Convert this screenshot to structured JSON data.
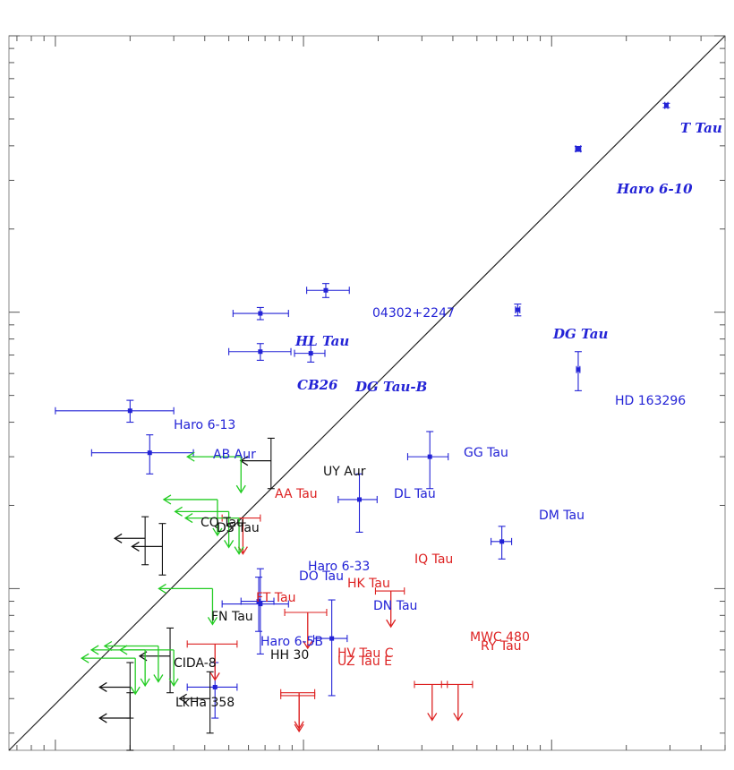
{
  "colors": {
    "blue": "#2323d6",
    "red": "#dd2222",
    "green": "#22cc22",
    "black": "#111111"
  },
  "chart_data": {
    "type": "scatter",
    "title": "",
    "xlabel": "",
    "ylabel": "",
    "xscale": "log",
    "yscale": "log",
    "xlim": [
      0.065,
      50
    ],
    "ylim": [
      0.026,
      10
    ],
    "grid": false,
    "tick_labels_shown": false,
    "reference_line": "y = x",
    "points": [
      {
        "name": "T Tau",
        "color": "blue",
        "style": "bold-italic",
        "x": 29,
        "y": 5.6,
        "xerr": [
          0.4,
          0.4
        ],
        "yerr": [
          0.1,
          0.1
        ]
      },
      {
        "name": "Haro 6-10",
        "color": "blue",
        "style": "bold-italic",
        "x": 12.8,
        "y": 3.9,
        "xerr": [
          0.3,
          0.3
        ],
        "yerr": [
          0.08,
          0.08
        ]
      },
      {
        "name": "04302+2247",
        "color": "blue",
        "style": "normal",
        "x": 1.23,
        "y": 1.2,
        "xerr": [
          0.2,
          0.3
        ],
        "yerr": [
          0.07,
          0.07
        ]
      },
      {
        "name": "DG Tau",
        "color": "blue",
        "style": "bold-italic",
        "x": 7.3,
        "y": 1.02,
        "xerr": [
          0.15,
          0.15
        ],
        "yerr": [
          0.05,
          0.05
        ]
      },
      {
        "name": "HL Tau",
        "color": "blue",
        "style": "bold-italic",
        "x": 0.67,
        "y": 0.99,
        "xerr": [
          0.15,
          0.2
        ],
        "yerr": [
          0.05,
          0.05
        ]
      },
      {
        "name": "CB26",
        "color": "blue",
        "style": "bold-italic",
        "x": 0.67,
        "y": 0.72,
        "xerr": [
          0.17,
          0.22
        ],
        "yerr": [
          0.05,
          0.05
        ]
      },
      {
        "name": "DG Tau-B",
        "color": "blue",
        "style": "bold-italic",
        "x": 1.07,
        "y": 0.71,
        "xerr": [
          0.15,
          0.15
        ],
        "yerr": [
          0.05,
          0.05
        ]
      },
      {
        "name": "HD 163296",
        "color": "blue",
        "style": "normal",
        "x": 12.8,
        "y": 0.62,
        "xerr": [
          0.2,
          0.2
        ],
        "yerr": [
          0.1,
          0.1
        ]
      },
      {
        "name": "Haro 6-13",
        "color": "blue",
        "style": "normal",
        "x": 0.2,
        "y": 0.44,
        "xerr": [
          0.1,
          0.1
        ],
        "yerr": [
          0.04,
          0.04
        ]
      },
      {
        "name": "AB Aur",
        "color": "blue",
        "style": "normal",
        "x": 0.24,
        "y": 0.31,
        "xerr": [
          0.1,
          0.12
        ],
        "yerr": [
          0.05,
          0.05
        ]
      },
      {
        "name": "GG Tau",
        "color": "blue",
        "style": "normal",
        "x": 3.23,
        "y": 0.3,
        "xerr": [
          0.6,
          0.6
        ],
        "yerr": [
          0.07,
          0.07
        ]
      },
      {
        "name": "DL Tau",
        "color": "blue",
        "style": "normal",
        "x": 1.68,
        "y": 0.21,
        "xerr": [
          0.3,
          0.3
        ],
        "yerr": [
          0.05,
          0.05
        ]
      },
      {
        "name": "DM Tau",
        "color": "blue",
        "style": "normal",
        "x": 6.3,
        "y": 0.148,
        "xerr": [
          0.6,
          0.6
        ],
        "yerr": [
          0.02,
          0.02
        ]
      },
      {
        "name": "DO Tau",
        "color": "blue",
        "style": "normal",
        "x": 0.67,
        "y": 0.088,
        "xerr": [
          0.2,
          0.2
        ],
        "yerr": [
          0.03,
          0.03
        ]
      },
      {
        "name": "Haro 6-33",
        "color": "blue",
        "style": "normal",
        "x": 0.66,
        "y": 0.09,
        "xerr": [
          0.1,
          0.1
        ],
        "yerr": [
          0.02,
          0.02
        ]
      },
      {
        "name": "DN Tau",
        "color": "blue",
        "style": "normal",
        "x": 1.3,
        "y": 0.066,
        "xerr": [
          0.2,
          0.2
        ],
        "yerr": [
          0.025,
          0.025
        ]
      },
      {
        "name": "Haro 6-5B",
        "color": "blue",
        "style": "normal",
        "x": 0.44,
        "y": 0.044,
        "xerr": [
          0.1,
          0.1
        ],
        "yerr": [
          0.01,
          0.01
        ]
      },
      {
        "name": "UY Aur",
        "color": "black",
        "style": "normal",
        "x": 0.74,
        "y": 0.29,
        "xerr": [
          0,
          0
        ],
        "yerr": [
          0.06,
          0.06
        ],
        "xlimit": "upper"
      },
      {
        "name": "CQ Tau",
        "color": "black",
        "style": "normal",
        "x": 0.23,
        "y": 0.152,
        "xerr": [
          0,
          0
        ],
        "yerr": [
          0.03,
          0.03
        ],
        "xlimit": "upper"
      },
      {
        "name": "DS Tau",
        "color": "black",
        "style": "normal",
        "x": 0.27,
        "y": 0.142,
        "xerr": [
          0,
          0
        ],
        "yerr": [
          0.03,
          0.03
        ],
        "xlimit": "upper"
      },
      {
        "name": "FN Tau",
        "color": "black",
        "style": "normal",
        "x": 0.29,
        "y": 0.057,
        "xerr": [
          0,
          0
        ],
        "yerr": [
          0.015,
          0.015
        ],
        "xlimit": "upper"
      },
      {
        "name": "CIDA-8",
        "color": "black",
        "style": "normal",
        "x": 0.2,
        "y": 0.044,
        "xerr": [
          0,
          0
        ],
        "yerr": [
          0.01,
          0.01
        ],
        "xlimit": "upper"
      },
      {
        "name": "HH 30",
        "color": "black",
        "style": "normal",
        "x": 0.42,
        "y": 0.04,
        "xerr": [
          0,
          0
        ],
        "yerr": [
          0.01,
          0.01
        ],
        "xlimit": "upper"
      },
      {
        "name": "LkHa 358",
        "color": "black",
        "style": "normal",
        "x": 0.2,
        "y": 0.034,
        "xerr": [
          0,
          0
        ],
        "yerr": [
          0.008,
          0.008
        ],
        "xlimit": "upper"
      },
      {
        "name": "AA Tau",
        "color": "red",
        "style": "normal",
        "x": 0.57,
        "y": 0.18,
        "xerr": [
          0.1,
          0.1
        ],
        "yerr": [
          0,
          0
        ],
        "ylimit": "upper"
      },
      {
        "name": "IQ Tau",
        "color": "red",
        "style": "normal",
        "x": 2.25,
        "y": 0.098,
        "xerr": [
          0.3,
          0.3
        ],
        "yerr": [
          0,
          0
        ],
        "ylimit": "upper"
      },
      {
        "name": "HK Tau",
        "color": "red",
        "style": "normal",
        "x": 1.04,
        "y": 0.082,
        "xerr": [
          0.2,
          0.2
        ],
        "yerr": [
          0,
          0
        ],
        "ylimit": "upper"
      },
      {
        "name": "FT Tau",
        "color": "red",
        "style": "normal",
        "x": 0.44,
        "y": 0.063,
        "xerr": [
          0.1,
          0.1
        ],
        "yerr": [
          0,
          0
        ],
        "ylimit": "upper"
      },
      {
        "name": "MWC 480",
        "color": "red",
        "style": "normal",
        "x": 3.3,
        "y": 0.045,
        "xerr": [
          0.5,
          0.5
        ],
        "yerr": [
          0,
          0
        ],
        "ylimit": "upper"
      },
      {
        "name": "RY Tau",
        "color": "red",
        "style": "normal",
        "x": 4.2,
        "y": 0.045,
        "xerr": [
          0.6,
          0.6
        ],
        "yerr": [
          0,
          0
        ],
        "ylimit": "upper"
      },
      {
        "name": "HV Tau C",
        "color": "red",
        "style": "normal",
        "x": 0.96,
        "y": 0.042,
        "xerr": [
          0.15,
          0.15
        ],
        "yerr": [
          0,
          0
        ],
        "ylimit": "upper"
      },
      {
        "name": "UZ Tau E",
        "color": "red",
        "style": "normal",
        "x": 0.96,
        "y": 0.041,
        "xerr": [
          0.15,
          0.15
        ],
        "yerr": [
          0,
          0
        ],
        "ylimit": "upper"
      }
    ],
    "green_limits": [
      {
        "x": 0.56,
        "y": 0.3
      },
      {
        "x": 0.45,
        "y": 0.21
      },
      {
        "x": 0.5,
        "y": 0.19
      },
      {
        "x": 0.55,
        "y": 0.18
      },
      {
        "x": 0.43,
        "y": 0.1
      },
      {
        "x": 0.26,
        "y": 0.062
      },
      {
        "x": 0.3,
        "y": 0.06
      },
      {
        "x": 0.23,
        "y": 0.06
      },
      {
        "x": 0.21,
        "y": 0.056
      }
    ]
  },
  "labels": {
    "t_tau": "T Tau",
    "haro_6_10": "Haro 6-10",
    "iras04302": "04302+2247",
    "dg_tau": "DG Tau",
    "hl_tau": "HL Tau",
    "cb26": "CB26",
    "dg_tau_b": "DG Tau-B",
    "hd163296": "HD 163296",
    "haro_6_13": "Haro 6-13",
    "ab_aur": "AB Aur",
    "uy_aur": "UY Aur",
    "gg_tau": "GG Tau",
    "aa_tau": "AA Tau",
    "dl_tau": "DL Tau",
    "cq_tau": "CQ Tau",
    "ds_tau": "DS Tau",
    "dm_tau": "DM Tau",
    "iq_tau": "IQ Tau",
    "haro_6_33": "Haro 6-33",
    "do_tau": "DO Tau",
    "hk_tau": "HK Tau",
    "ft_tau": "FT Tau",
    "dn_tau": "DN Tau",
    "fn_tau": "FN Tau",
    "mwc480": "MWC 480",
    "ry_tau": "RY Tau",
    "haro_6_5b": "Haro 6-5B",
    "hv_tau_c": "HV Tau C",
    "hh30": "HH 30",
    "uz_tau_e": "UZ Tau E",
    "cida8": "CIDA-8",
    "lkha358": "LkHa 358"
  }
}
